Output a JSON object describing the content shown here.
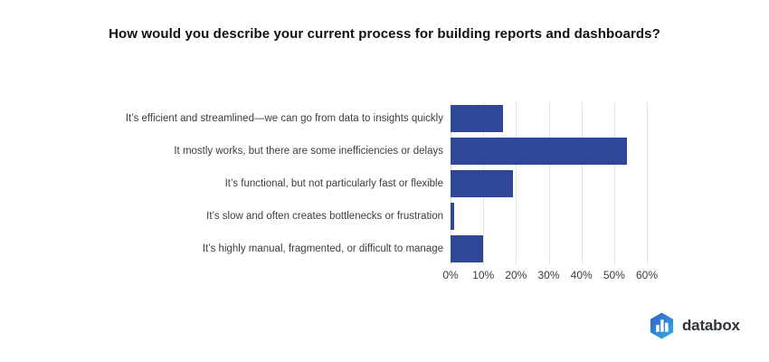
{
  "title": "How would you describe your current process for building reports and dashboards?",
  "chart_data": {
    "type": "bar",
    "orientation": "horizontal",
    "title": "How would you describe your current process for building reports and dashboards?",
    "categories": [
      "It’s efficient and streamlined—we can go from data to insights quickly",
      "It mostly works, but there are some inefficiencies or delays",
      "It’s functional, but not particularly fast or flexible",
      "It’s slow and often creates bottlenecks or frustration",
      "It’s highly manual, fragmented, or difficult to manage"
    ],
    "values": [
      16,
      54,
      19,
      1,
      10
    ],
    "unit": "%",
    "x_ticks": [
      "0%",
      "10%",
      "20%",
      "30%",
      "40%",
      "50%",
      "60%"
    ],
    "xlim": [
      0,
      65
    ],
    "grid": "vertical",
    "legend": "none",
    "bar_color": "#2f4796",
    "gridline_color": "#e3e3e3"
  },
  "branding": {
    "logo_text": "databox",
    "logo_icon": "hexagon-bar-chart-icon",
    "icon_gradient_start": "#2f5fc4",
    "icon_gradient_end": "#35aee8",
    "wordmark_color": "#2d333a"
  }
}
